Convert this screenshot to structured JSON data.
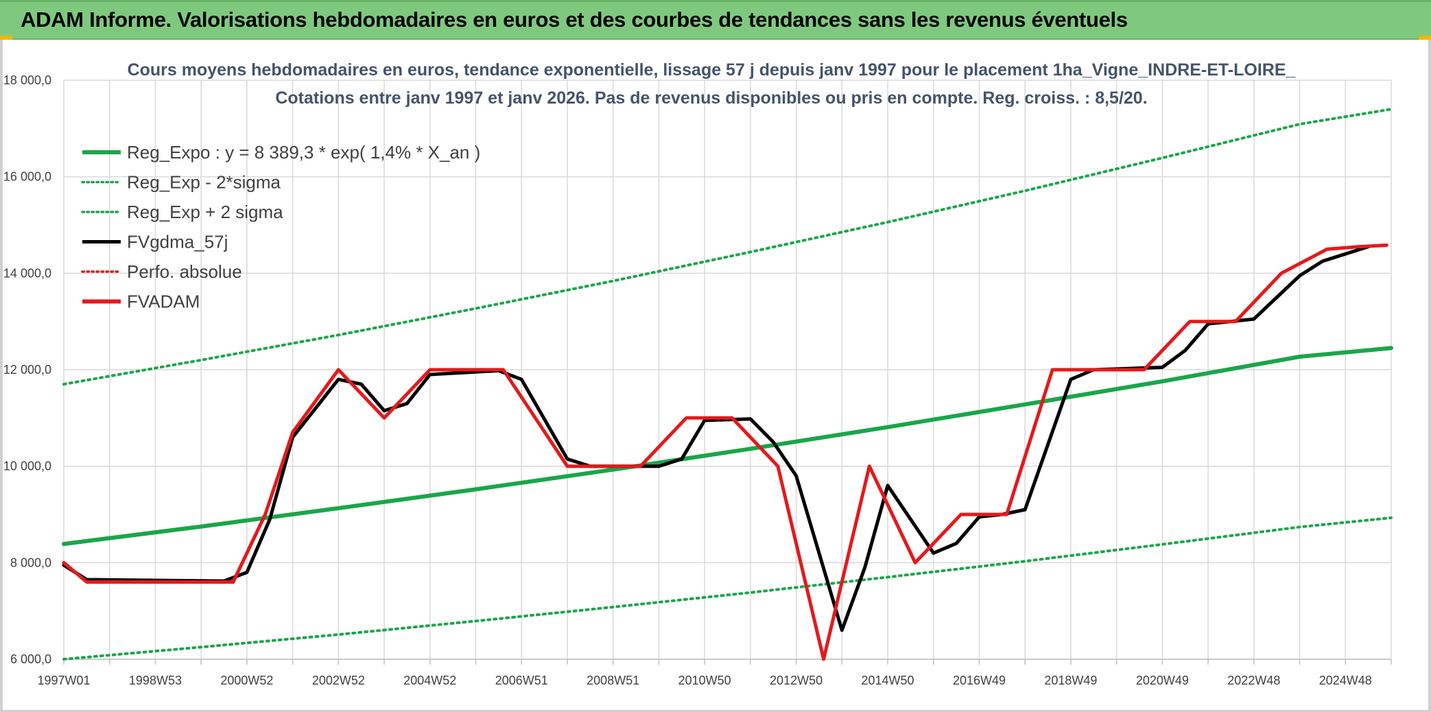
{
  "banner": {
    "title": "ADAM Informe. Valorisations hebdomadaires en euros et des courbes de tendances sans les revenus éventuels"
  },
  "colors": {
    "banner_bg": "#7fc97f",
    "accent": "#f2b705",
    "title_text": "#44546a",
    "trend_green": "#1aa64a",
    "band_green": "#1aa64a",
    "smooth_black": "#000000",
    "perf_red": "#e31a1c",
    "fvadam_red": "#e31a1c",
    "grid": "#d9d9d9"
  },
  "chart_data": {
    "type": "line",
    "title": "Cours moyens hebdomadaires en euros, tendance exponentielle, lissage 57 j depuis janv 1997 pour le placement 1ha_Vigne_INDRE-ET-LOIRE_",
    "subtitle": "Cotations entre janv 1997 et janv 2026. Pas de revenus disponibles ou pris en compte. Reg. croiss. : 8,5/20.",
    "xlabel": "",
    "ylabel": "",
    "xlim": [
      1997.0,
      2026.0
    ],
    "ylim": [
      6000,
      18000
    ],
    "y_ticks": [
      6000,
      8000,
      10000,
      12000,
      14000,
      16000,
      18000
    ],
    "y_tick_labels": [
      "6 000,0",
      "8 000,0",
      "10 000,0",
      "12 000,0",
      "14 000,0",
      "16 000,0",
      "18 000,0"
    ],
    "x_tick_labels": [
      "1997W01",
      "1998W53",
      "2000W52",
      "2002W52",
      "2004W52",
      "2006W51",
      "2008W51",
      "2010W50",
      "2012W50",
      "2014W50",
      "2016W49",
      "2018W49",
      "2020W49",
      "2022W48",
      "2024W48"
    ],
    "x_tick_years": [
      1997.0,
      1999.0,
      2001.0,
      2003.0,
      2005.0,
      2007.0,
      2009.0,
      2011.0,
      2013.0,
      2015.0,
      2017.0,
      2019.0,
      2021.0,
      2023.0,
      2025.0
    ],
    "grid": true,
    "legend_position": "top-left",
    "series": [
      {
        "name": "Reg_Expo : y = 8 389,3 * exp( 1,4% *  X_an )",
        "style": "solid-thick",
        "color": "#1aa64a",
        "x": [
          1997,
          2000,
          2003,
          2006,
          2009,
          2012,
          2015,
          2018,
          2021,
          2024,
          2026
        ],
        "y": [
          8389,
          8750,
          9130,
          9520,
          9930,
          10360,
          10810,
          11280,
          11760,
          12270,
          12450
        ]
      },
      {
        "name": "Reg_Exp - 2*sigma",
        "style": "dotted",
        "color": "#1aa64a",
        "x": [
          1997,
          2000,
          2003,
          2006,
          2009,
          2012,
          2015,
          2018,
          2021,
          2024,
          2026
        ],
        "y": [
          6000,
          6250,
          6510,
          6790,
          7080,
          7380,
          7700,
          8030,
          8380,
          8740,
          8930
        ]
      },
      {
        "name": "Reg_Exp + 2 sigma",
        "style": "dotted",
        "color": "#1aa64a",
        "x": [
          1997,
          2000,
          2003,
          2006,
          2009,
          2012,
          2015,
          2018,
          2021,
          2024,
          2026
        ],
        "y": [
          11700,
          12200,
          12720,
          13270,
          13840,
          14440,
          15060,
          15710,
          16390,
          17090,
          17400
        ]
      },
      {
        "name": "FVgdma_57j",
        "style": "solid",
        "color": "#000000",
        "x": [
          1997.0,
          1997.5,
          2000.5,
          2001.0,
          2001.5,
          2002.0,
          2003.0,
          2003.5,
          2004.0,
          2004.5,
          2005.0,
          2006.5,
          2007.0,
          2008.0,
          2008.5,
          2010.0,
          2010.5,
          2011.0,
          2012.0,
          2012.5,
          2013.0,
          2014.0,
          2014.5,
          2015.0,
          2016.0,
          2016.5,
          2017.0,
          2017.5,
          2018.0,
          2019.0,
          2019.5,
          2021.0,
          2021.5,
          2022.0,
          2023.0,
          2023.5,
          2024.0,
          2024.5,
          2025.5
        ],
        "y": [
          7950,
          7650,
          7620,
          7800,
          8900,
          10600,
          11800,
          11700,
          11150,
          11300,
          11900,
          11980,
          11800,
          10150,
          10000,
          10000,
          10150,
          10950,
          10980,
          10500,
          9800,
          6600,
          7900,
          9600,
          8200,
          8400,
          8950,
          9000,
          9100,
          11800,
          12000,
          12050,
          12400,
          12950,
          13050,
          13500,
          13950,
          14250,
          14550
        ]
      },
      {
        "name": "Perfo. absolue",
        "style": "dotted",
        "color": "#e31a1c",
        "x": [],
        "y": []
      },
      {
        "name": "FVADAM",
        "style": "solid-thick",
        "color": "#e31a1c",
        "x": [
          1997.0,
          1997.5,
          2000.7,
          2001.4,
          2002.0,
          2003.0,
          2004.0,
          2005.0,
          2006.6,
          2008.0,
          2009.6,
          2010.6,
          2011.6,
          2012.6,
          2013.6,
          2014.6,
          2015.6,
          2016.6,
          2017.6,
          2018.6,
          2019.6,
          2020.6,
          2021.6,
          2022.6,
          2023.6,
          2024.6,
          2025.3,
          2025.9
        ],
        "y": [
          8000,
          7600,
          7600,
          9000,
          10700,
          12000,
          11000,
          12000,
          12000,
          10000,
          10000,
          11000,
          11000,
          10000,
          6000,
          10000,
          8000,
          9000,
          9000,
          12000,
          12000,
          12000,
          13000,
          13000,
          14000,
          14500,
          14550,
          14580
        ]
      }
    ]
  }
}
